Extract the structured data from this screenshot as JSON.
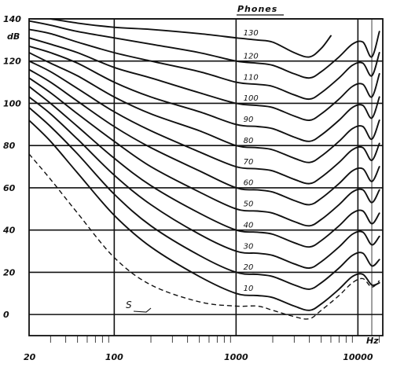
{
  "chart_data": {
    "type": "line",
    "title": "",
    "xlabel": "Hz",
    "ylabel": "dB",
    "legend_title": "Phones",
    "x_scale": "log",
    "xlim": [
      20,
      16000
    ],
    "ylim": [
      -10,
      140
    ],
    "grid": true,
    "x_tick_labels": [
      {
        "value": 20,
        "label": "20"
      },
      {
        "value": 100,
        "label": "100"
      },
      {
        "value": 1000,
        "label": "1000"
      },
      {
        "value": 10000,
        "label": "10000"
      }
    ],
    "y_tick_labels": [
      {
        "value": 0,
        "label": "0"
      },
      {
        "value": 20,
        "label": "20"
      },
      {
        "value": 40,
        "label": "40"
      },
      {
        "value": 60,
        "label": "60"
      },
      {
        "value": 80,
        "label": "80"
      },
      {
        "value": 100,
        "label": "100"
      },
      {
        "value": 120,
        "label": "120"
      },
      {
        "value": 140,
        "label": "140"
      }
    ],
    "series": [
      {
        "name": "10",
        "x": [
          20,
          30,
          50,
          100,
          200,
          500,
          1000,
          1500,
          2000,
          3000,
          4000,
          5000,
          7000,
          9000,
          11000,
          13000,
          15000
        ],
        "y": [
          92,
          82,
          67,
          47,
          32,
          18,
          10,
          9,
          8,
          4,
          2,
          5,
          12,
          18,
          19,
          14,
          15
        ]
      },
      {
        "name": "20",
        "x": [
          20,
          30,
          50,
          100,
          200,
          500,
          1000,
          1500,
          2000,
          3000,
          4000,
          5000,
          7000,
          9000,
          11000,
          13000,
          15000
        ],
        "y": [
          98,
          89,
          76,
          57,
          42,
          28,
          20,
          19,
          18,
          14,
          12,
          15,
          22,
          28,
          29,
          23,
          26
        ]
      },
      {
        "name": "30",
        "x": [
          20,
          30,
          50,
          100,
          200,
          500,
          1000,
          1500,
          2000,
          3000,
          4000,
          5000,
          7000,
          9000,
          11000,
          13000,
          15000
        ],
        "y": [
          103,
          95,
          83,
          66,
          52,
          38,
          30,
          29,
          28,
          24,
          22,
          25,
          32,
          38,
          39,
          33,
          37
        ]
      },
      {
        "name": "40",
        "x": [
          20,
          30,
          50,
          100,
          200,
          500,
          1000,
          1500,
          2000,
          3000,
          4000,
          5000,
          7000,
          9000,
          11000,
          13000,
          15000
        ],
        "y": [
          108,
          100,
          89,
          74,
          61,
          48,
          40,
          39,
          38,
          34,
          32,
          35,
          42,
          48,
          49,
          43,
          48
        ]
      },
      {
        "name": "50",
        "x": [
          20,
          30,
          50,
          100,
          200,
          500,
          1000,
          1500,
          2000,
          3000,
          4000,
          5000,
          7000,
          9000,
          11000,
          13000,
          15000
        ],
        "y": [
          112,
          105,
          95,
          82,
          70,
          58,
          50,
          49,
          48,
          44,
          42,
          45,
          52,
          58,
          59,
          53,
          59
        ]
      },
      {
        "name": "60",
        "x": [
          20,
          30,
          50,
          100,
          200,
          500,
          1000,
          1500,
          2000,
          3000,
          4000,
          5000,
          7000,
          9000,
          11000,
          13000,
          15000
        ],
        "y": [
          116,
          110,
          101,
          89,
          79,
          68,
          60,
          59,
          58,
          54,
          52,
          55,
          62,
          68,
          69,
          63,
          70
        ]
      },
      {
        "name": "70",
        "x": [
          20,
          30,
          50,
          100,
          200,
          500,
          1000,
          1500,
          2000,
          3000,
          4000,
          5000,
          7000,
          9000,
          11000,
          13000,
          15000
        ],
        "y": [
          120,
          115,
          107,
          96,
          87,
          77,
          70,
          69,
          68,
          64,
          62,
          65,
          72,
          78,
          79,
          73,
          81
        ]
      },
      {
        "name": "80",
        "x": [
          20,
          30,
          50,
          100,
          200,
          500,
          1000,
          1500,
          2000,
          3000,
          4000,
          5000,
          7000,
          9000,
          11000,
          13000,
          15000
        ],
        "y": [
          124,
          119,
          113,
          103,
          95,
          87,
          80,
          79,
          78,
          74,
          72,
          75,
          82,
          88,
          89,
          83,
          92
        ]
      },
      {
        "name": "90",
        "x": [
          20,
          30,
          50,
          100,
          200,
          500,
          1000,
          1500,
          2000,
          3000,
          4000,
          5000,
          7000,
          9000,
          11000,
          13000,
          15000
        ],
        "y": [
          127,
          124,
          119,
          110,
          103,
          96,
          90,
          89,
          88,
          84,
          82,
          85,
          92,
          98,
          99,
          93,
          103
        ]
      },
      {
        "name": "100",
        "x": [
          20,
          30,
          50,
          100,
          200,
          500,
          1000,
          1500,
          2000,
          3000,
          4000,
          5000,
          7000,
          9000,
          11000,
          13000,
          15000
        ],
        "y": [
          131,
          128,
          124,
          117,
          112,
          105,
          100,
          99,
          98,
          94,
          92,
          95,
          102,
          108,
          109,
          103,
          114
        ]
      },
      {
        "name": "110",
        "x": [
          20,
          30,
          50,
          100,
          200,
          500,
          1000,
          1500,
          2000,
          3000,
          4000,
          5000,
          7000,
          9000,
          11000,
          13000,
          15000
        ],
        "y": [
          135,
          133,
          129,
          124,
          120,
          115,
          110,
          109,
          108,
          104,
          102,
          105,
          112,
          118,
          119,
          113,
          124
        ]
      },
      {
        "name": "120",
        "x": [
          20,
          30,
          50,
          100,
          200,
          500,
          1000,
          1500,
          2000,
          3000,
          4000,
          5000,
          7000,
          9000,
          11000,
          13000,
          15000
        ],
        "y": [
          139,
          137,
          134,
          131,
          128,
          124,
          120,
          119,
          118,
          114,
          112,
          115,
          122,
          128,
          129,
          122,
          134
        ]
      },
      {
        "name": "130",
        "x": [
          30,
          50,
          100,
          200,
          500,
          1000,
          1500,
          2000,
          3000,
          4000,
          5000,
          6000
        ],
        "y": [
          140,
          138,
          136,
          135,
          133,
          131,
          130,
          129,
          124,
          122,
          126,
          132
        ]
      }
    ],
    "threshold_curve": {
      "label": "S",
      "x": [
        20,
        30,
        50,
        100,
        200,
        500,
        1000,
        1500,
        2000,
        3000,
        4000,
        5000,
        7000,
        9000,
        11000,
        13000,
        15000
      ],
      "y": [
        76,
        64,
        48,
        27,
        14,
        6,
        4,
        4,
        2,
        -1,
        -2,
        2,
        9,
        15,
        17,
        13,
        16
      ]
    }
  }
}
